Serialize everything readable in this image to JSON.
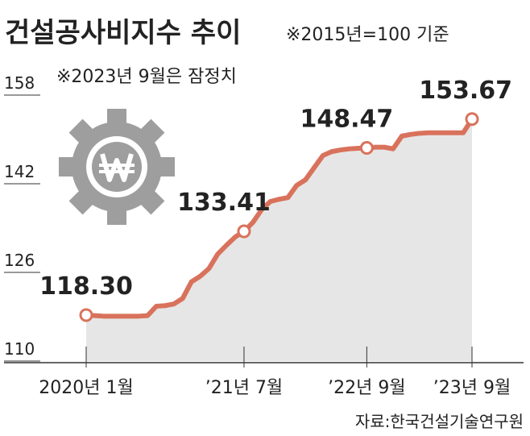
{
  "chart_data": {
    "type": "line",
    "title": "건설공사비지수 추이",
    "subtitle": "※2015년=100 기준",
    "note": "※2023년 9월은 잠정치",
    "source": "자료:한국건설기술연구원",
    "categories": [
      "2020년 1월",
      null,
      null,
      null,
      null,
      null,
      null,
      null,
      null,
      null,
      null,
      null,
      null,
      null,
      null,
      null,
      null,
      null,
      "’21년 7월",
      null,
      null,
      null,
      null,
      null,
      null,
      null,
      null,
      null,
      null,
      null,
      null,
      null,
      "’22년 9월",
      null,
      null,
      null,
      null,
      null,
      null,
      null,
      null,
      null,
      null,
      null,
      "’23년 9월"
    ],
    "values": [
      118.3,
      118.2,
      118.1,
      118.1,
      118.1,
      118.1,
      118.1,
      118.2,
      119.9,
      120.0,
      120.3,
      121.3,
      124.3,
      125.3,
      126.7,
      129.3,
      130.9,
      132.4,
      133.41,
      135.0,
      137.3,
      138.8,
      139.2,
      139.5,
      141.7,
      142.7,
      144.9,
      147.1,
      147.8,
      148.1,
      148.3,
      148.4,
      148.47,
      148.6,
      148.6,
      148.3,
      150.6,
      150.9,
      151.1,
      151.2,
      151.2,
      151.2,
      151.2,
      151.2,
      153.67
    ],
    "value_labels": [
      "118.30",
      null,
      null,
      null,
      null,
      null,
      null,
      null,
      null,
      null,
      null,
      null,
      null,
      null,
      null,
      null,
      null,
      null,
      "133.41",
      null,
      null,
      null,
      null,
      null,
      null,
      null,
      null,
      null,
      null,
      null,
      null,
      null,
      "148.47",
      null,
      null,
      null,
      null,
      null,
      null,
      null,
      null,
      null,
      null,
      null,
      "153.67"
    ],
    "color": "#d9725c",
    "area_color": "#e6e6e6",
    "ylim": [
      110,
      158
    ],
    "yticks": [
      110,
      126,
      142,
      158
    ]
  }
}
